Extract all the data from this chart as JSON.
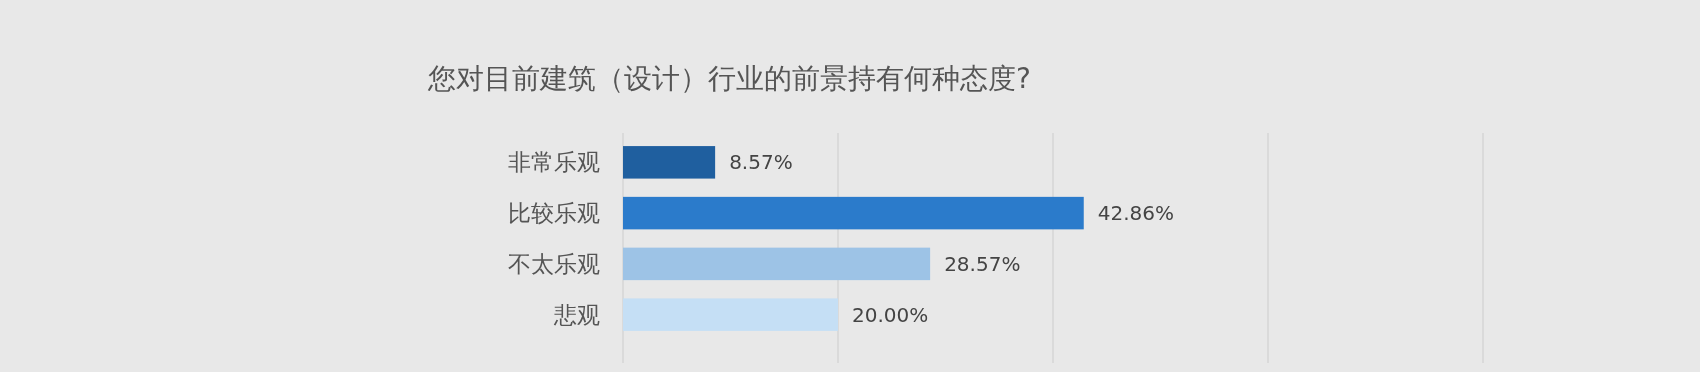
{
  "chart_data": {
    "type": "bar",
    "orientation": "horizontal",
    "title": "您对目前建筑（设计）行业的前景持有何种态度?",
    "categories": [
      "非常乐观",
      "比较乐观",
      "不太乐观",
      "悲观"
    ],
    "values": [
      8.57,
      42.86,
      28.57,
      20.0
    ],
    "value_labels": [
      "8.57%",
      "42.86%",
      "28.57%",
      "20.00%"
    ],
    "colors": [
      "#1f5f9f",
      "#2b7bcb",
      "#9dc3e6",
      "#c5dff5"
    ],
    "xlim": [
      0,
      80
    ],
    "xticks": [
      {
        "value": 0,
        "label": null
      },
      {
        "value": 20,
        "label": null
      },
      {
        "value": 40,
        "label": null
      },
      {
        "value": 60,
        "label": null
      },
      {
        "value": 80,
        "label": null
      }
    ],
    "grid": "x",
    "tick_labels": "y"
  }
}
